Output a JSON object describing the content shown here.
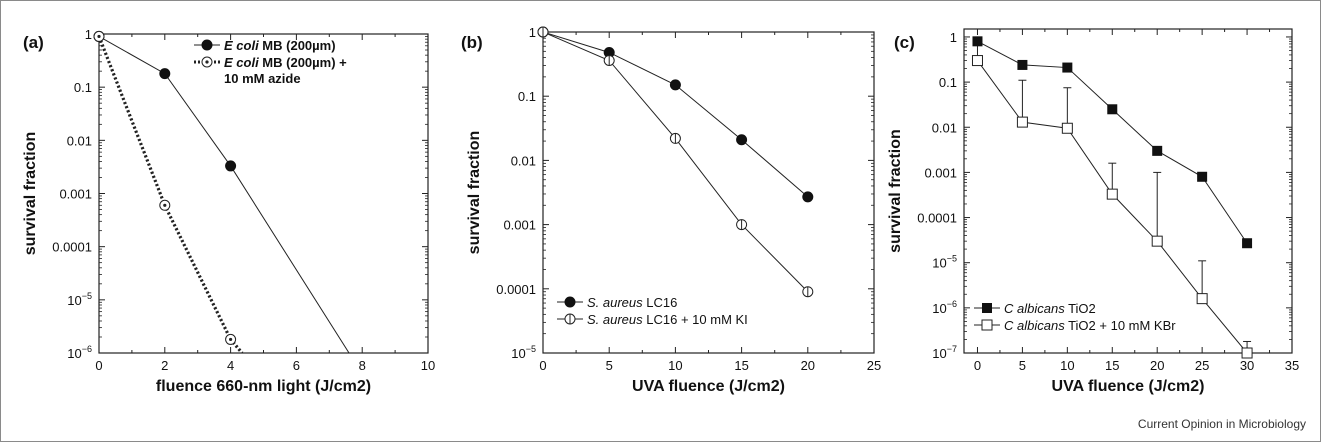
{
  "caption": "Current Opinion in Microbiology",
  "chart_data": [
    {
      "type": "line",
      "panel_label": "(a)",
      "xlabel": "fluence 660-nm light (J/cm2)",
      "ylabel": "survival fraction",
      "xlim": [
        0,
        10
      ],
      "ylim": [
        1e-06,
        1
      ],
      "y_scale": "log",
      "x_ticks": [
        0,
        2,
        4,
        6,
        8,
        10
      ],
      "y_ticks": [
        {
          "v": 1,
          "label": "1"
        },
        {
          "v": 0.1,
          "label": "0.1"
        },
        {
          "v": 0.01,
          "label": "0.01"
        },
        {
          "v": 0.001,
          "label": "0.001"
        },
        {
          "v": 0.0001,
          "label": "0.0001"
        },
        {
          "v": 1e-05,
          "label": "10",
          "sup": "−5"
        },
        {
          "v": 1e-06,
          "label": "10",
          "sup": "−6"
        }
      ],
      "legend_position": "top-right",
      "series": [
        {
          "name": "E coli MB (200µm)",
          "legend_italic": "E coli",
          "legend_rest": " MB (200µm)",
          "marker": "filled-circle",
          "line_style": "solid",
          "points": [
            [
              0,
              0.9
            ],
            [
              2,
              0.18
            ],
            [
              4,
              0.0033
            ],
            [
              7.6,
              1e-06
            ]
          ]
        },
        {
          "name": "E coli MB (200µm) + 10 mM azide",
          "legend_italic": "E coli",
          "legend_rest": " MB (200µm) +",
          "legend_line2": "10 mM azide",
          "marker": "open-circle-dot",
          "line_style": "dotted",
          "points": [
            [
              0,
              0.9
            ],
            [
              2,
              0.0006
            ],
            [
              4,
              1.8e-06
            ],
            [
              4.35,
              1e-06
            ]
          ]
        }
      ]
    },
    {
      "type": "line",
      "panel_label": "(b)",
      "xlabel": "UVA fluence (J/cm2)",
      "ylabel": "survival fraction",
      "xlim": [
        0,
        25
      ],
      "ylim": [
        1e-05,
        1
      ],
      "y_scale": "log",
      "x_ticks": [
        0,
        5,
        10,
        15,
        20,
        25
      ],
      "y_ticks": [
        {
          "v": 1,
          "label": "1"
        },
        {
          "v": 0.1,
          "label": "0.1"
        },
        {
          "v": 0.01,
          "label": "0.01"
        },
        {
          "v": 0.001,
          "label": "0.001"
        },
        {
          "v": 0.0001,
          "label": "0.0001"
        },
        {
          "v": 1e-05,
          "label": "10",
          "sup": "−5"
        }
      ],
      "legend_position": "bottom-left",
      "series": [
        {
          "name": "S. aureus LC16",
          "legend_italic": "S. aureus",
          "legend_rest": " LC16",
          "marker": "filled-circle",
          "line_style": "solid",
          "points": [
            [
              0,
              1
            ],
            [
              5,
              0.48
            ],
            [
              10,
              0.15
            ],
            [
              15,
              0.021
            ],
            [
              20,
              0.0027
            ]
          ]
        },
        {
          "name": "S. aureus LC16 + 10 mM KI",
          "legend_italic": "S. aureus",
          "legend_rest": " LC16 + 10 mM KI",
          "marker": "open-circle-bar",
          "line_style": "solid",
          "points": [
            [
              0,
              1
            ],
            [
              5,
              0.36
            ],
            [
              10,
              0.022
            ],
            [
              15,
              0.001
            ],
            [
              20,
              9e-05
            ]
          ]
        }
      ]
    },
    {
      "type": "line",
      "panel_label": "(c)",
      "xlabel": "UVA fluence (J/cm2)",
      "ylabel": "survival fraction",
      "xlim": [
        -1.5,
        35
      ],
      "ylim": [
        1e-07,
        1.5
      ],
      "y_scale": "log",
      "x_ticks": [
        0,
        5,
        10,
        15,
        20,
        25,
        30,
        35
      ],
      "y_ticks": [
        {
          "v": 1,
          "label": "1"
        },
        {
          "v": 0.1,
          "label": "0.1"
        },
        {
          "v": 0.01,
          "label": "0.01"
        },
        {
          "v": 0.001,
          "label": "0.001"
        },
        {
          "v": 0.0001,
          "label": "0.0001"
        },
        {
          "v": 1e-05,
          "label": "10",
          "sup": "−5"
        },
        {
          "v": 1e-06,
          "label": "10",
          "sup": "−6"
        },
        {
          "v": 1e-07,
          "label": "10",
          "sup": "−7"
        }
      ],
      "legend_position": "bottom-left",
      "series": [
        {
          "name": "C albicans TiO2",
          "legend_italic": "C albicans",
          "legend_rest": " TiO2",
          "marker": "filled-square",
          "line_style": "solid",
          "points": [
            [
              0,
              0.8
            ],
            [
              5,
              0.24
            ],
            [
              10,
              0.21
            ],
            [
              15,
              0.025
            ],
            [
              20,
              0.003
            ],
            [
              25,
              0.0008
            ],
            [
              30,
              2.7e-05
            ]
          ]
        },
        {
          "name": "C albicans TiO2 + 10 mM KBr",
          "legend_italic": "C albicans",
          "legend_rest": " TiO2 + 10 mM KBr",
          "marker": "open-square",
          "line_style": "solid",
          "points": [
            [
              0,
              0.3
            ],
            [
              5,
              0.013
            ],
            [
              10,
              0.0095
            ],
            [
              15,
              0.00033
            ],
            [
              20,
              3e-05
            ],
            [
              25,
              1.6e-06
            ],
            [
              30,
              1e-07
            ]
          ],
          "error_upper": [
            0.72,
            0.11,
            0.075,
            0.0016,
            0.001,
            1.1e-05,
            1.8e-07
          ]
        }
      ]
    }
  ]
}
